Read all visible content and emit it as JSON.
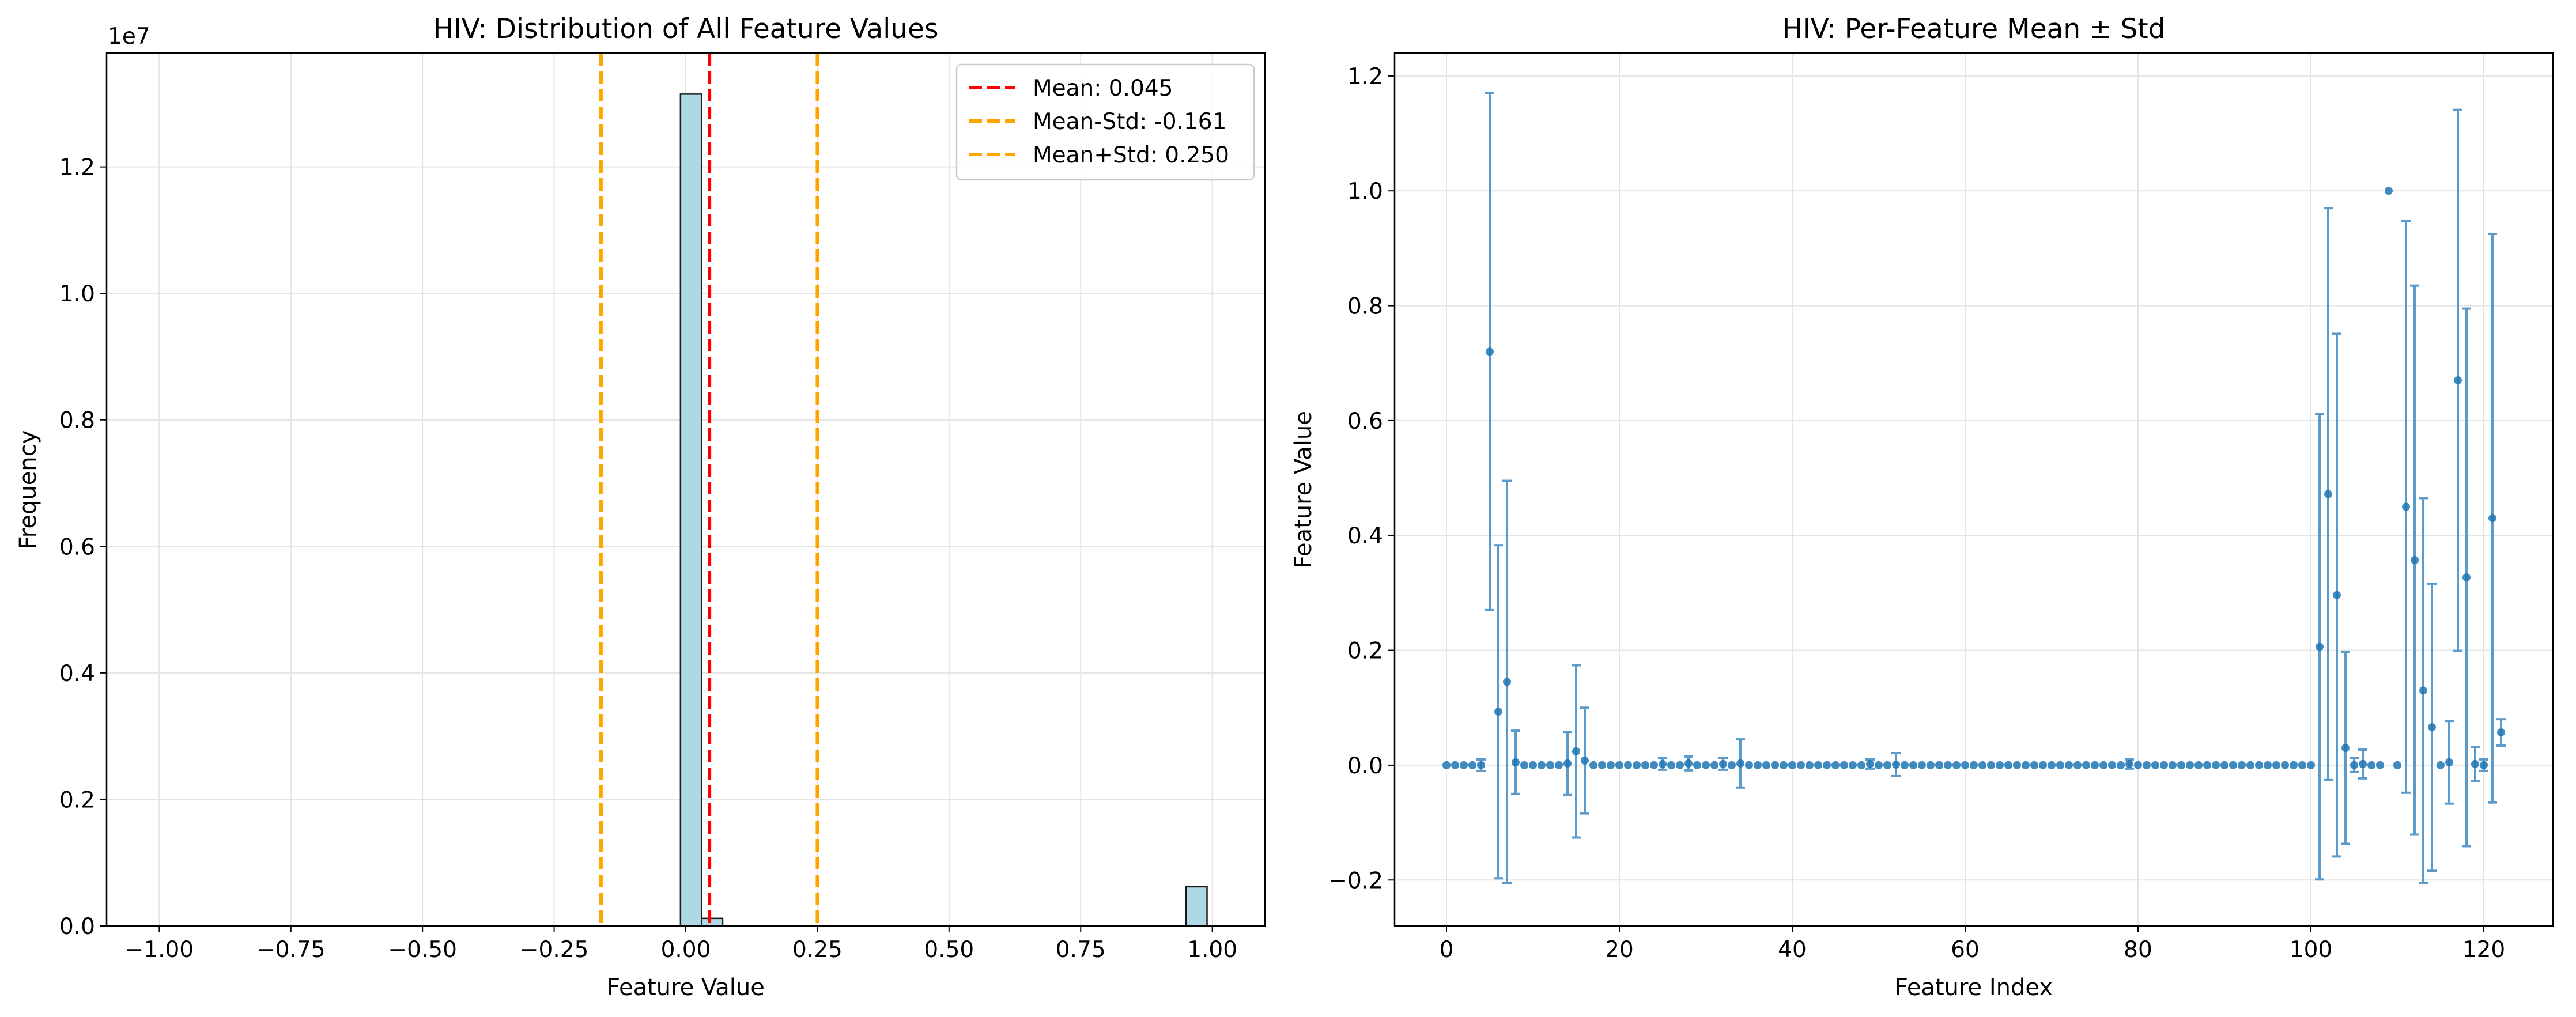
{
  "chart_data": [
    {
      "type": "bar",
      "title": "HIV: Distribution of All Feature Values",
      "xlabel": "Feature Value",
      "ylabel": "Frequency",
      "offset_label": "1e7",
      "xlim": [
        -1.1,
        1.1
      ],
      "ylim": [
        0,
        13800000
      ],
      "grid": true,
      "x_ticks": [
        -1.0,
        -0.75,
        -0.5,
        -0.25,
        0.0,
        0.25,
        0.5,
        0.75,
        1.0
      ],
      "x_tick_labels": [
        "−1.00",
        "−0.75",
        "−0.50",
        "−0.25",
        "0.00",
        "0.25",
        "0.50",
        "0.75",
        "1.00"
      ],
      "y_ticks": [
        0,
        2000000,
        4000000,
        6000000,
        8000000,
        10000000,
        12000000
      ],
      "y_tick_labels": [
        "0.0",
        "0.2",
        "0.4",
        "0.6",
        "0.8",
        "1.0",
        "1.2"
      ],
      "bins": [
        {
          "x0": -0.01,
          "x1": 0.03,
          "count": 13150000
        },
        {
          "x0": 0.03,
          "x1": 0.07,
          "count": 120000
        },
        {
          "x0": 0.95,
          "x1": 0.99,
          "count": 620000
        }
      ],
      "bar_color": "#add8e6",
      "vlines": [
        {
          "x": 0.045,
          "color": "#ff0000",
          "label": "Mean: 0.045"
        },
        {
          "x": -0.161,
          "color": "#ffa500",
          "label": "Mean-Std: -0.161"
        },
        {
          "x": 0.25,
          "color": "#ffa500",
          "label": "Mean+Std: 0.250"
        }
      ],
      "legend_position": "top-right"
    },
    {
      "type": "scatter",
      "title": "HIV: Per-Feature Mean ± Std",
      "xlabel": "Feature Index",
      "ylabel": "Feature Value",
      "xlim": [
        -6,
        128
      ],
      "ylim": [
        -0.28,
        1.24
      ],
      "grid": true,
      "x_ticks": [
        0,
        20,
        40,
        60,
        80,
        100,
        120
      ],
      "x_tick_labels": [
        "0",
        "20",
        "40",
        "60",
        "80",
        "100",
        "120"
      ],
      "y_ticks": [
        -0.2,
        0.0,
        0.2,
        0.4,
        0.6,
        0.8,
        1.0,
        1.2
      ],
      "y_tick_labels": [
        "−0.2",
        "0.0",
        "0.2",
        "0.4",
        "0.6",
        "0.8",
        "1.0",
        "1.2"
      ],
      "color": "#1f77b4",
      "errorbar_color": "#5a9bcc",
      "means": [
        0,
        0,
        0,
        0,
        0,
        0.72,
        0.093,
        0.145,
        0.005,
        0,
        0,
        0,
        0,
        0,
        0.003,
        0.024,
        0.008,
        0,
        0,
        0,
        0,
        0,
        0,
        0,
        0,
        0.002,
        0,
        0,
        0.003,
        0,
        0,
        0,
        0.002,
        0,
        0.003,
        0,
        0,
        0,
        0,
        0,
        0,
        0,
        0,
        0,
        0,
        0,
        0,
        0,
        0,
        0.002,
        0,
        0,
        0.001,
        0,
        0,
        0,
        0,
        0,
        0,
        0,
        0,
        0,
        0,
        0,
        0,
        0,
        0,
        0,
        0,
        0,
        0,
        0,
        0,
        0,
        0,
        0,
        0,
        0,
        0,
        0.002,
        0,
        0,
        0,
        0,
        0,
        0,
        0,
        0,
        0,
        0,
        0,
        0,
        0,
        0,
        0,
        0,
        0,
        0,
        0,
        0,
        0,
        0.206,
        0.472,
        0.296,
        0.03,
        0,
        0.002,
        0,
        0,
        1.0,
        0,
        0.45,
        0.357,
        0.13,
        0.066,
        0,
        0.005,
        0.67,
        0.327,
        0.002,
        0,
        0.43,
        0.057
      ],
      "stds": [
        0,
        0,
        0,
        0,
        0.01,
        0.45,
        0.29,
        0.35,
        0.055,
        0,
        0,
        0,
        0,
        0,
        0.055,
        0.15,
        0.092,
        0,
        0,
        0,
        0,
        0,
        0,
        0,
        0,
        0.01,
        0,
        0,
        0.012,
        0,
        0,
        0,
        0.01,
        0,
        0.042,
        0,
        0,
        0,
        0,
        0,
        0,
        0,
        0,
        0,
        0,
        0,
        0,
        0,
        0,
        0.008,
        0,
        0,
        0.02,
        0,
        0,
        0,
        0,
        0,
        0,
        0,
        0,
        0,
        0,
        0,
        0,
        0,
        0,
        0,
        0,
        0,
        0,
        0,
        0,
        0,
        0,
        0,
        0,
        0,
        0,
        0.008,
        0,
        0,
        0,
        0,
        0,
        0,
        0,
        0,
        0,
        0,
        0,
        0,
        0,
        0,
        0,
        0,
        0,
        0,
        0,
        0,
        0,
        0.405,
        0.498,
        0.455,
        0.167,
        0.012,
        0.025,
        0,
        0,
        0,
        0,
        0.498,
        0.478,
        0.335,
        0.25,
        0,
        0.072,
        0.471,
        0.468,
        0.03,
        0.01,
        0.495,
        0.023
      ]
    }
  ]
}
